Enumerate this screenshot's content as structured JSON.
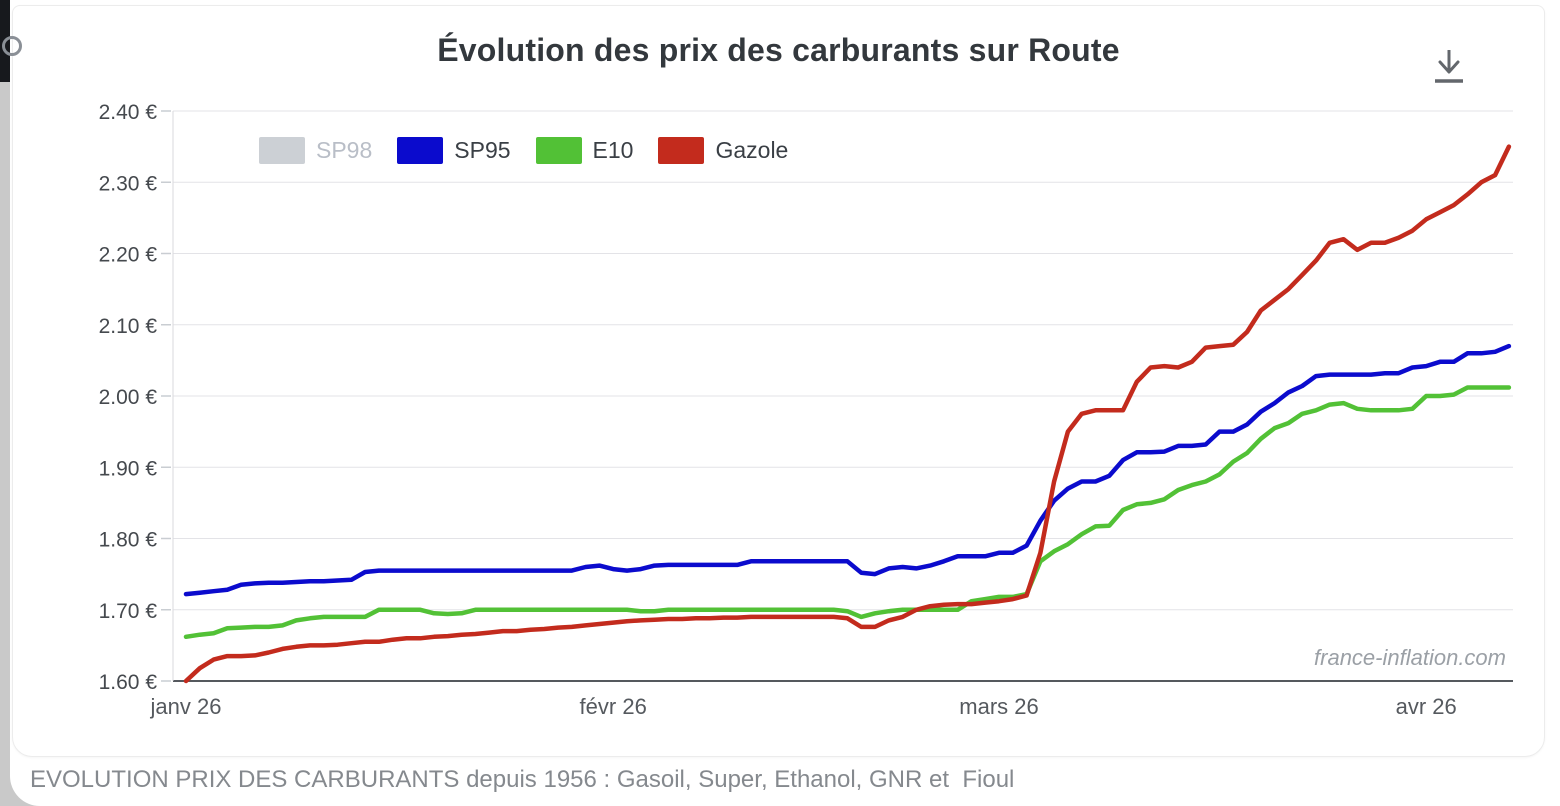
{
  "page": {
    "title": "Évolution des prix des carburants sur Route",
    "caption": "EVOLUTION PRIX DES CARBURANTS depuis 1956 : Gasoil, Super, Ethanol, GNR et  Fioul",
    "watermark": "france-inflation.com"
  },
  "colors": {
    "sp98": "#ccd0d5",
    "sp95": "#0b0bcd",
    "e10": "#52c136",
    "gazole": "#c32b1d",
    "grid": "#e3e3e7",
    "axis": "#55595e",
    "tick_text": "#45494e",
    "inactive_legend_text": "#b9bec7",
    "title_text": "#33383d",
    "watermark_text": "#9ba0a6",
    "caption_text": "#85898e"
  },
  "chart_data": {
    "type": "line",
    "title": "Évolution des prix des carburants sur Route",
    "currency_suffix": " €",
    "ylim": [
      1.6,
      2.42
    ],
    "grid": true,
    "legend_position": "top-left",
    "y_ticks": [
      {
        "value": 1.6,
        "label": "1.60 €"
      },
      {
        "value": 1.7,
        "label": "1.70 €"
      },
      {
        "value": 1.8,
        "label": "1.80 €"
      },
      {
        "value": 1.9,
        "label": "1.90 €"
      },
      {
        "value": 2.0,
        "label": "2.00 €"
      },
      {
        "value": 2.1,
        "label": "2.10 €"
      },
      {
        "value": 2.2,
        "label": "2.20 €"
      },
      {
        "value": 2.3,
        "label": "2.30 €"
      },
      {
        "value": 2.4,
        "label": "2.40 €"
      }
    ],
    "x_ticks": [
      {
        "day": 0,
        "label": "janv 26"
      },
      {
        "day": 31,
        "label": "févr 26"
      },
      {
        "day": 59,
        "label": "mars 26"
      },
      {
        "day": 90,
        "label": "avr 26"
      }
    ],
    "x_unit": "days (daily prices, estimated from plot; day 0 = tick janv 26)",
    "legend": [
      {
        "name": "SP98",
        "color": "#ccd0d5",
        "active": false
      },
      {
        "name": "SP95",
        "color": "#0b0bcd",
        "active": true
      },
      {
        "name": "E10",
        "color": "#52c136",
        "active": true
      },
      {
        "name": "Gazole",
        "color": "#c32b1d",
        "active": true
      }
    ],
    "series": [
      {
        "name": "SP98",
        "color": "#ccd0d5",
        "visible": false,
        "values": []
      },
      {
        "name": "SP95",
        "color": "#0b0bcd",
        "visible": true,
        "values": [
          1.722,
          1.724,
          1.726,
          1.728,
          1.735,
          1.737,
          1.738,
          1.738,
          1.739,
          1.74,
          1.74,
          1.741,
          1.742,
          1.753,
          1.755,
          1.755,
          1.755,
          1.755,
          1.755,
          1.755,
          1.755,
          1.755,
          1.755,
          1.755,
          1.755,
          1.755,
          1.755,
          1.755,
          1.755,
          1.76,
          1.762,
          1.757,
          1.755,
          1.757,
          1.762,
          1.763,
          1.763,
          1.763,
          1.763,
          1.763,
          1.763,
          1.768,
          1.768,
          1.768,
          1.768,
          1.768,
          1.768,
          1.768,
          1.768,
          1.752,
          1.75,
          1.758,
          1.76,
          1.758,
          1.762,
          1.768,
          1.775,
          1.775,
          1.775,
          1.78,
          1.78,
          1.79,
          1.825,
          1.853,
          1.87,
          1.88,
          1.88,
          1.888,
          1.91,
          1.921,
          1.921,
          1.922,
          1.93,
          1.93,
          1.932,
          1.95,
          1.95,
          1.96,
          1.978,
          1.99,
          2.005,
          2.014,
          2.028,
          2.03,
          2.03,
          2.03,
          2.03,
          2.032,
          2.032,
          2.04,
          2.042,
          2.048,
          2.048,
          2.06,
          2.06,
          2.062,
          2.07
        ]
      },
      {
        "name": "E10",
        "color": "#52c136",
        "visible": true,
        "values": [
          1.662,
          1.665,
          1.667,
          1.674,
          1.675,
          1.676,
          1.676,
          1.678,
          1.685,
          1.688,
          1.69,
          1.69,
          1.69,
          1.69,
          1.7,
          1.7,
          1.7,
          1.7,
          1.695,
          1.694,
          1.695,
          1.7,
          1.7,
          1.7,
          1.7,
          1.7,
          1.7,
          1.7,
          1.7,
          1.7,
          1.7,
          1.7,
          1.7,
          1.698,
          1.698,
          1.7,
          1.7,
          1.7,
          1.7,
          1.7,
          1.7,
          1.7,
          1.7,
          1.7,
          1.7,
          1.7,
          1.7,
          1.7,
          1.698,
          1.69,
          1.695,
          1.698,
          1.7,
          1.7,
          1.7,
          1.7,
          1.7,
          1.712,
          1.715,
          1.718,
          1.718,
          1.722,
          1.768,
          1.782,
          1.792,
          1.806,
          1.817,
          1.818,
          1.84,
          1.848,
          1.85,
          1.855,
          1.868,
          1.875,
          1.88,
          1.89,
          1.908,
          1.92,
          1.94,
          1.955,
          1.962,
          1.975,
          1.98,
          1.988,
          1.99,
          1.982,
          1.98,
          1.98,
          1.98,
          1.982,
          2.0,
          2.0,
          2.002,
          2.012,
          2.012,
          2.012,
          2.012
        ]
      },
      {
        "name": "Gazole",
        "color": "#c32b1d",
        "visible": true,
        "values": [
          1.6,
          1.618,
          1.63,
          1.635,
          1.635,
          1.636,
          1.64,
          1.645,
          1.648,
          1.65,
          1.65,
          1.651,
          1.653,
          1.655,
          1.655,
          1.658,
          1.66,
          1.66,
          1.662,
          1.663,
          1.665,
          1.666,
          1.668,
          1.67,
          1.67,
          1.672,
          1.673,
          1.675,
          1.676,
          1.678,
          1.68,
          1.682,
          1.684,
          1.685,
          1.686,
          1.687,
          1.687,
          1.688,
          1.688,
          1.689,
          1.689,
          1.69,
          1.69,
          1.69,
          1.69,
          1.69,
          1.69,
          1.69,
          1.688,
          1.676,
          1.676,
          1.685,
          1.69,
          1.7,
          1.705,
          1.707,
          1.708,
          1.708,
          1.71,
          1.712,
          1.715,
          1.72,
          1.78,
          1.88,
          1.95,
          1.975,
          1.98,
          1.98,
          1.98,
          2.02,
          2.04,
          2.042,
          2.04,
          2.048,
          2.068,
          2.07,
          2.072,
          2.09,
          2.12,
          2.135,
          2.15,
          2.17,
          2.19,
          2.215,
          2.22,
          2.205,
          2.215,
          2.215,
          2.222,
          2.232,
          2.248,
          2.258,
          2.268,
          2.283,
          2.3,
          2.31,
          2.35
        ]
      }
    ]
  }
}
